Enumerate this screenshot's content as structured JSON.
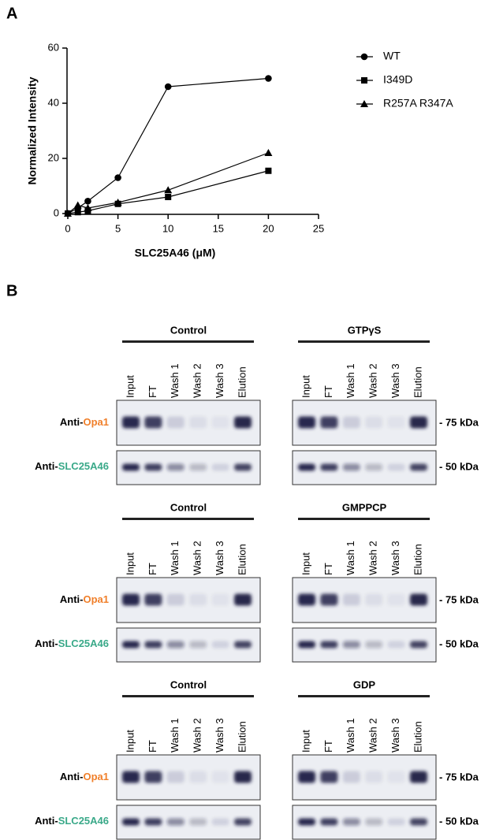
{
  "panel_labels": [
    "A",
    "B"
  ],
  "chart_data": {
    "type": "line",
    "x_label": "SLC25A46 (μM)",
    "y_label": "Normalized Intensity",
    "x": [
      0,
      1,
      2,
      5,
      10,
      20
    ],
    "series": [
      {
        "name": "WT",
        "color": "#000000",
        "marker": "circle",
        "values": [
          0,
          2,
          4.5,
          13,
          46,
          49
        ]
      },
      {
        "name": "I349D",
        "color": "#000000",
        "marker": "square",
        "values": [
          0,
          0.5,
          1,
          3.5,
          6,
          15.5
        ]
      },
      {
        "name": "R257A R347A",
        "color": "#000000",
        "marker": "triangle",
        "values": [
          0,
          3,
          2,
          4,
          8.5,
          22
        ]
      }
    ],
    "xlim": [
      0,
      25
    ],
    "xticks": [
      0,
      5,
      10,
      15,
      20,
      25
    ],
    "ylim": [
      0,
      60
    ],
    "yticks": [
      0,
      20,
      40,
      60
    ],
    "grid": false,
    "legend": "outside-right"
  },
  "blots": {
    "lanes": [
      "Input",
      "FT",
      "Wash 1",
      "Wash 2",
      "Wash 3",
      "Elution"
    ],
    "row_labels": [
      {
        "prefix": "Anti-",
        "target": "Opa1",
        "color": "#f07f2a"
      },
      {
        "prefix": "Anti-",
        "target": "SLC25A46",
        "color": "#3aa989"
      }
    ],
    "markers": [
      "- 75 kDa",
      "- 50 kDa"
    ],
    "groups": [
      [
        "Control",
        "GTPγS"
      ],
      [
        "Control",
        "GMPPCP"
      ],
      [
        "Control",
        "GDP"
      ]
    ]
  }
}
